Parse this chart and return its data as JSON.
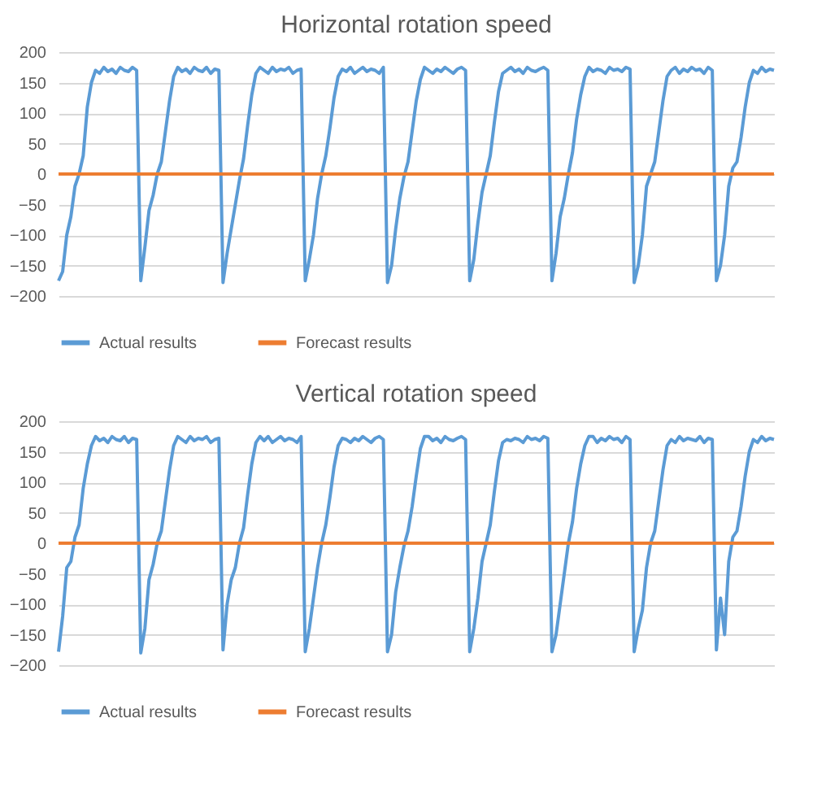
{
  "chart_data": [
    {
      "type": "line",
      "title": "Horizontal rotation speed",
      "categories": [
        null,
        null,
        null,
        null,
        null,
        null,
        null,
        null,
        null,
        null,
        null,
        null,
        null,
        null,
        null,
        null,
        null,
        null,
        null,
        null,
        null,
        null,
        null,
        null,
        null,
        null,
        null,
        null,
        null,
        null,
        null,
        null,
        null,
        null,
        null,
        null,
        null,
        null,
        null,
        null,
        null,
        null,
        null,
        null,
        null,
        null,
        null,
        null,
        null,
        null,
        null,
        null,
        null,
        null,
        null,
        null,
        null,
        null,
        null,
        null,
        null,
        null,
        null,
        null,
        null,
        null,
        null,
        null,
        null,
        null,
        null,
        null,
        null,
        null,
        null,
        null,
        null,
        null,
        null,
        null,
        null,
        null,
        null,
        null,
        null,
        null,
        null,
        null,
        null,
        null,
        null,
        null,
        null,
        null,
        null,
        null,
        null,
        null,
        null,
        null,
        null,
        null,
        null,
        null,
        null,
        null,
        null,
        null,
        null,
        null,
        null,
        null,
        null,
        null,
        null,
        null,
        null,
        null,
        null,
        null,
        null,
        null,
        null,
        null,
        null,
        null,
        null,
        null,
        null,
        null,
        null,
        null,
        null,
        null,
        null,
        null,
        null,
        null,
        null,
        null,
        null,
        null,
        null,
        null,
        null,
        null,
        null,
        null,
        null,
        null,
        null,
        null,
        null,
        null,
        null,
        null,
        null,
        null,
        null,
        null,
        null,
        null,
        null,
        null,
        null,
        null,
        null,
        null,
        null,
        null,
        null,
        null,
        null,
        null,
        null
      ],
      "series": [
        {
          "name": "Actual results",
          "color": "#5b9bd5",
          "values": [
            -175,
            -160,
            -100,
            -70,
            -20,
            0,
            30,
            110,
            150,
            170,
            165,
            175,
            168,
            172,
            165,
            175,
            170,
            168,
            175,
            170,
            -175,
            -120,
            -60,
            -35,
            0,
            20,
            70,
            120,
            160,
            175,
            168,
            172,
            165,
            175,
            170,
            168,
            175,
            165,
            172,
            170,
            -178,
            -130,
            -90,
            -50,
            -10,
            25,
            80,
            130,
            165,
            175,
            170,
            165,
            175,
            168,
            172,
            170,
            175,
            165,
            170,
            172,
            -175,
            -140,
            -100,
            -40,
            0,
            30,
            75,
            125,
            160,
            172,
            168,
            175,
            165,
            170,
            175,
            168,
            172,
            170,
            165,
            175,
            -178,
            -150,
            -90,
            -40,
            -5,
            20,
            70,
            120,
            155,
            175,
            170,
            165,
            172,
            168,
            175,
            170,
            165,
            172,
            175,
            170,
            -175,
            -140,
            -80,
            -30,
            0,
            30,
            85,
            135,
            165,
            170,
            175,
            168,
            172,
            165,
            175,
            170,
            168,
            172,
            175,
            170,
            -175,
            -130,
            -70,
            -40,
            0,
            35,
            90,
            130,
            160,
            175,
            168,
            172,
            170,
            165,
            175,
            170,
            172,
            168,
            175,
            172,
            -178,
            -150,
            -100,
            -20,
            0,
            20,
            70,
            120,
            160,
            170,
            175,
            165,
            172,
            168,
            175,
            170,
            172,
            165,
            175,
            170,
            -175,
            -150,
            -100,
            -20,
            10,
            20,
            60,
            110,
            150,
            170,
            165,
            175,
            168,
            172,
            170
          ]
        },
        {
          "name": "Forecast results",
          "color": "#ed7d31",
          "values": [
            0,
            0,
            0,
            0,
            0,
            0,
            0,
            0,
            0,
            0,
            0,
            0,
            0,
            0,
            0,
            0,
            0,
            0,
            0,
            0,
            0,
            0,
            0,
            0,
            0,
            0,
            0,
            0,
            0,
            0,
            0,
            0,
            0,
            0,
            0,
            0,
            0,
            0,
            0,
            0,
            0,
            0,
            0,
            0,
            0,
            0,
            0,
            0,
            0,
            0,
            0,
            0,
            0,
            0,
            0,
            0,
            0,
            0,
            0,
            0,
            0,
            0,
            0,
            0,
            0,
            0,
            0,
            0,
            0,
            0,
            0,
            0,
            0,
            0,
            0,
            0,
            0,
            0,
            0,
            0,
            0,
            0,
            0,
            0,
            0,
            0,
            0,
            0,
            0,
            0,
            0,
            0,
            0,
            0,
            0,
            0,
            0,
            0,
            0,
            0,
            0,
            0,
            0,
            0,
            0,
            0,
            0,
            0,
            0,
            0,
            0,
            0,
            0,
            0,
            0,
            0,
            0,
            0,
            0,
            0,
            0,
            0,
            0,
            0,
            0,
            0,
            0,
            0,
            0,
            0,
            0,
            0,
            0,
            0,
            0,
            0,
            0,
            0,
            0,
            0,
            0,
            0,
            0,
            0,
            0,
            0,
            0,
            0,
            0,
            0,
            0,
            0,
            0,
            0,
            0,
            0,
            0,
            0,
            0,
            0,
            0,
            0,
            0,
            0,
            0,
            0,
            0,
            0,
            0,
            0,
            0,
            0,
            0,
            0,
            0
          ]
        }
      ],
      "ylim": [
        -200,
        200
      ],
      "yticks": [
        -200,
        -150,
        -100,
        -50,
        0,
        50,
        100,
        150,
        200
      ],
      "grid": "y",
      "legend": "bottom",
      "tick_labels": "y",
      "marker": "none",
      "line_style": "solid"
    },
    {
      "type": "line",
      "title": "Vertical rotation speed",
      "categories": [
        null,
        null,
        null,
        null,
        null,
        null,
        null,
        null,
        null,
        null,
        null,
        null,
        null,
        null,
        null,
        null,
        null,
        null,
        null,
        null,
        null,
        null,
        null,
        null,
        null,
        null,
        null,
        null,
        null,
        null,
        null,
        null,
        null,
        null,
        null,
        null,
        null,
        null,
        null,
        null,
        null,
        null,
        null,
        null,
        null,
        null,
        null,
        null,
        null,
        null,
        null,
        null,
        null,
        null,
        null,
        null,
        null,
        null,
        null,
        null,
        null,
        null,
        null,
        null,
        null,
        null,
        null,
        null,
        null,
        null,
        null,
        null,
        null,
        null,
        null,
        null,
        null,
        null,
        null,
        null,
        null,
        null,
        null,
        null,
        null,
        null,
        null,
        null,
        null,
        null,
        null,
        null,
        null,
        null,
        null,
        null,
        null,
        null,
        null,
        null,
        null,
        null,
        null,
        null,
        null,
        null,
        null,
        null,
        null,
        null,
        null,
        null,
        null,
        null,
        null,
        null,
        null,
        null,
        null,
        null,
        null,
        null,
        null,
        null,
        null,
        null,
        null,
        null,
        null,
        null,
        null,
        null,
        null,
        null,
        null,
        null,
        null,
        null,
        null,
        null,
        null,
        null,
        null,
        null,
        null,
        null,
        null,
        null,
        null,
        null,
        null,
        null,
        null,
        null,
        null,
        null,
        null,
        null,
        null,
        null,
        null,
        null,
        null,
        null,
        null,
        null,
        null,
        null,
        null,
        null,
        null,
        null,
        null,
        null,
        null
      ],
      "series": [
        {
          "name": "Actual results",
          "color": "#5b9bd5",
          "values": [
            -178,
            -120,
            -40,
            -30,
            10,
            30,
            90,
            130,
            160,
            175,
            168,
            172,
            165,
            175,
            170,
            168,
            175,
            165,
            172,
            170,
            -180,
            -140,
            -60,
            -35,
            0,
            20,
            70,
            120,
            160,
            175,
            170,
            165,
            175,
            168,
            172,
            170,
            175,
            165,
            170,
            172,
            -175,
            -100,
            -60,
            -40,
            0,
            25,
            80,
            130,
            165,
            175,
            168,
            175,
            165,
            170,
            175,
            168,
            172,
            170,
            165,
            175,
            -178,
            -140,
            -90,
            -40,
            0,
            30,
            75,
            125,
            160,
            172,
            170,
            165,
            172,
            168,
            175,
            170,
            165,
            172,
            175,
            170,
            -178,
            -150,
            -80,
            -40,
            -5,
            20,
            60,
            110,
            155,
            175,
            175,
            168,
            172,
            165,
            175,
            170,
            168,
            172,
            175,
            170,
            -178,
            -140,
            -90,
            -30,
            0,
            30,
            85,
            135,
            165,
            170,
            168,
            172,
            170,
            165,
            175,
            170,
            172,
            168,
            175,
            172,
            -178,
            -150,
            -100,
            -50,
            0,
            35,
            90,
            130,
            160,
            175,
            175,
            165,
            172,
            168,
            175,
            170,
            172,
            165,
            175,
            170,
            -178,
            -140,
            -110,
            -40,
            0,
            20,
            70,
            120,
            160,
            170,
            165,
            175,
            168,
            172,
            170,
            168,
            175,
            165,
            172,
            170,
            -175,
            -90,
            -150,
            -30,
            10,
            20,
            60,
            110,
            150,
            170,
            165,
            175,
            168,
            172,
            170
          ]
        },
        {
          "name": "Forecast results",
          "color": "#ed7d31",
          "values": [
            0,
            0,
            0,
            0,
            0,
            0,
            0,
            0,
            0,
            0,
            0,
            0,
            0,
            0,
            0,
            0,
            0,
            0,
            0,
            0,
            0,
            0,
            0,
            0,
            0,
            0,
            0,
            0,
            0,
            0,
            0,
            0,
            0,
            0,
            0,
            0,
            0,
            0,
            0,
            0,
            0,
            0,
            0,
            0,
            0,
            0,
            0,
            0,
            0,
            0,
            0,
            0,
            0,
            0,
            0,
            0,
            0,
            0,
            0,
            0,
            0,
            0,
            0,
            0,
            0,
            0,
            0,
            0,
            0,
            0,
            0,
            0,
            0,
            0,
            0,
            0,
            0,
            0,
            0,
            0,
            0,
            0,
            0,
            0,
            0,
            0,
            0,
            0,
            0,
            0,
            0,
            0,
            0,
            0,
            0,
            0,
            0,
            0,
            0,
            0,
            0,
            0,
            0,
            0,
            0,
            0,
            0,
            0,
            0,
            0,
            0,
            0,
            0,
            0,
            0,
            0,
            0,
            0,
            0,
            0,
            0,
            0,
            0,
            0,
            0,
            0,
            0,
            0,
            0,
            0,
            0,
            0,
            0,
            0,
            0,
            0,
            0,
            0,
            0,
            0,
            0,
            0,
            0,
            0,
            0,
            0,
            0,
            0,
            0,
            0,
            0,
            0,
            0,
            0,
            0,
            0,
            0,
            0,
            0,
            0,
            0,
            0,
            0,
            0,
            0,
            0,
            0,
            0,
            0,
            0,
            0,
            0,
            0,
            0,
            0
          ]
        }
      ],
      "ylim": [
        -200,
        200
      ],
      "yticks": [
        -200,
        -150,
        -100,
        -50,
        0,
        50,
        100,
        150,
        200
      ],
      "grid": "y",
      "legend": "bottom",
      "tick_labels": "y",
      "marker": "none",
      "line_style": "solid"
    }
  ]
}
